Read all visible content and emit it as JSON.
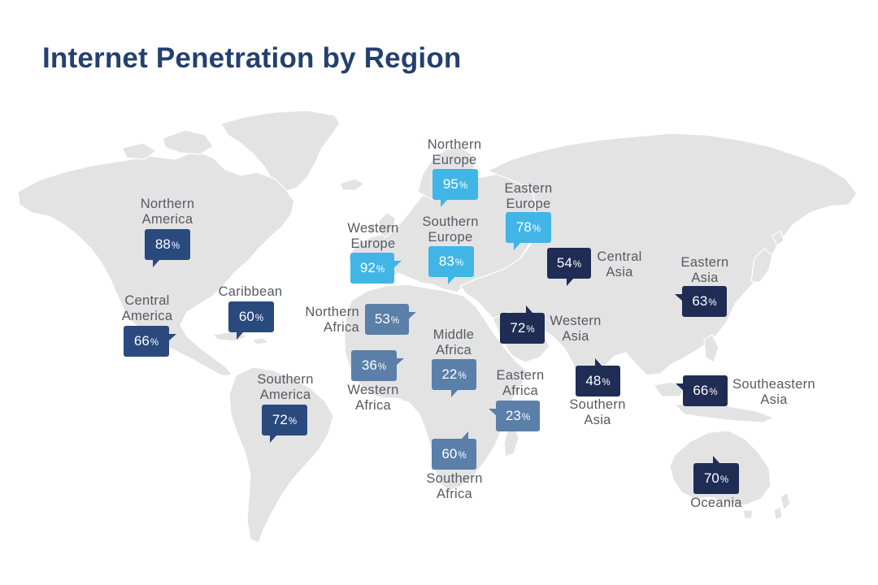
{
  "title": "Internet Penetration by Region",
  "colors": {
    "light_blue": "#41b6e6",
    "mid_blue": "#5a7fa9",
    "blue": "#2a4a7e",
    "navy": "#1f2d55",
    "land": "#e3e3e4",
    "title": "#24406f",
    "label": "#555b63"
  },
  "regions": [
    {
      "id": "northern-america",
      "name_lines": [
        "Northern",
        "America"
      ],
      "value": "88",
      "unit": "%",
      "color": "#2a4a7e"
    },
    {
      "id": "central-america",
      "name_lines": [
        "Central",
        "America"
      ],
      "value": "66",
      "unit": "%",
      "color": "#2a4a7e"
    },
    {
      "id": "caribbean",
      "name_lines": [
        "Caribbean"
      ],
      "value": "60",
      "unit": "%",
      "color": "#2a4a7e"
    },
    {
      "id": "southern-america",
      "name_lines": [
        "Southern",
        "America"
      ],
      "value": "72",
      "unit": "%",
      "color": "#2a4a7e"
    },
    {
      "id": "northern-europe",
      "name_lines": [
        "Northern",
        "Europe"
      ],
      "value": "95",
      "unit": "%",
      "color": "#41b6e6"
    },
    {
      "id": "eastern-europe",
      "name_lines": [
        "Eastern",
        "Europe"
      ],
      "value": "78",
      "unit": "%",
      "color": "#41b6e6"
    },
    {
      "id": "western-europe",
      "name_lines": [
        "Western",
        "Europe"
      ],
      "value": "92",
      "unit": "%",
      "color": "#41b6e6"
    },
    {
      "id": "southern-europe",
      "name_lines": [
        "Southern",
        "Europe"
      ],
      "value": "83",
      "unit": "%",
      "color": "#41b6e6"
    },
    {
      "id": "northern-africa",
      "name_lines": [
        "Northern",
        "Africa"
      ],
      "value": "53",
      "unit": "%",
      "color": "#5a7fa9"
    },
    {
      "id": "western-africa",
      "name_lines": [
        "Western",
        "Africa"
      ],
      "value": "36",
      "unit": "%",
      "color": "#5a7fa9"
    },
    {
      "id": "middle-africa",
      "name_lines": [
        "Middle",
        "Africa"
      ],
      "value": "22",
      "unit": "%",
      "color": "#5a7fa9"
    },
    {
      "id": "eastern-africa",
      "name_lines": [
        "Eastern",
        "Africa"
      ],
      "value": "23",
      "unit": "%",
      "color": "#5a7fa9"
    },
    {
      "id": "southern-africa",
      "name_lines": [
        "Southern",
        "Africa"
      ],
      "value": "60",
      "unit": "%",
      "color": "#5a7fa9"
    },
    {
      "id": "central-asia",
      "name_lines": [
        "Central",
        "Asia"
      ],
      "value": "54",
      "unit": "%",
      "color": "#1f2d55"
    },
    {
      "id": "western-asia",
      "name_lines": [
        "Western",
        "Asia"
      ],
      "value": "72",
      "unit": "%",
      "color": "#1f2d55"
    },
    {
      "id": "southern-asia",
      "name_lines": [
        "Southern",
        "Asia"
      ],
      "value": "48",
      "unit": "%",
      "color": "#1f2d55"
    },
    {
      "id": "eastern-asia",
      "name_lines": [
        "Eastern",
        "Asia"
      ],
      "value": "63",
      "unit": "%",
      "color": "#1f2d55"
    },
    {
      "id": "southeastern-asia",
      "name_lines": [
        "Southeastern",
        "Asia"
      ],
      "value": "66",
      "unit": "%",
      "color": "#1f2d55"
    },
    {
      "id": "oceania",
      "name_lines": [
        "Oceania"
      ],
      "value": "70",
      "unit": "%",
      "color": "#1f2d55"
    }
  ]
}
